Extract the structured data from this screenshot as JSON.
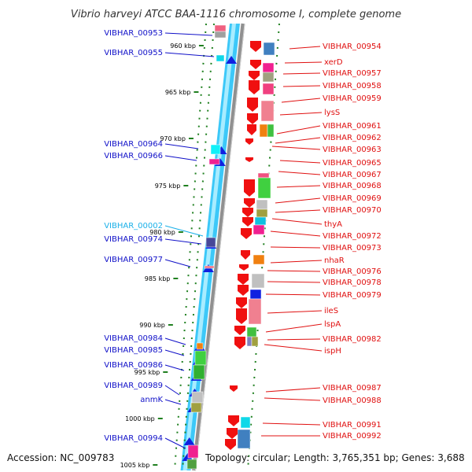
{
  "title": "Vibrio harveyi ATCC BAA-1116 chromosome I, complete genome",
  "footer": {
    "accession": "Accession: NC_009783",
    "topology": "Topology: circular; Length: 3,765,351 bp; Genes: 3,688"
  },
  "colors": {
    "left_gene_label": "#1010c8",
    "left_gene_label_alt": "#1ab0e8",
    "right_gene_label": "#e01010",
    "backbone_blue": "#3cc8f8",
    "backbone_gray": "#909090",
    "tick_green": "#208020"
  },
  "kbp_ticks": [
    "960 kbp",
    "965 kbp",
    "970 kbp",
    "975 kbp",
    "980 kbp",
    "985 kbp",
    "990 kbp",
    "995 kbp",
    "1000 kbp",
    "1005 kbp"
  ],
  "left_genes": [
    {
      "label": "VIBHAR_00953",
      "color": "#1010c8"
    },
    {
      "label": "VIBHAR_00955",
      "color": "#1010c8"
    },
    {
      "label": "VIBHAR_00964",
      "color": "#1010c8"
    },
    {
      "label": "VIBHAR_00966",
      "color": "#1010c8"
    },
    {
      "label": "VIBHAR_00002",
      "color": "#1ab0e8"
    },
    {
      "label": "VIBHAR_00974",
      "color": "#1010c8"
    },
    {
      "label": "VIBHAR_00977",
      "color": "#1010c8"
    },
    {
      "label": "VIBHAR_00984",
      "color": "#1010c8"
    },
    {
      "label": "VIBHAR_00985",
      "color": "#1010c8"
    },
    {
      "label": "VIBHAR_00986",
      "color": "#1010c8"
    },
    {
      "label": "VIBHAR_00989",
      "color": "#1010c8"
    },
    {
      "label": "anmK",
      "color": "#1010c8"
    },
    {
      "label": "VIBHAR_00994",
      "color": "#1010c8"
    }
  ],
  "right_genes": [
    "VIBHAR_00954",
    "xerD",
    "VIBHAR_00957",
    "VIBHAR_00958",
    "VIBHAR_00959",
    "lysS",
    "VIBHAR_00961",
    "VIBHAR_00962",
    "VIBHAR_00963",
    "VIBHAR_00965",
    "VIBHAR_00967",
    "VIBHAR_00968",
    "VIBHAR_00969",
    "VIBHAR_00970",
    "thyA",
    "VIBHAR_00972",
    "VIBHAR_00973",
    "nhaR",
    "VIBHAR_00976",
    "VIBHAR_00978",
    "VIBHAR_00979",
    "ileS",
    "lspA",
    "VIBHAR_00982",
    "ispH",
    "VIBHAR_00987",
    "VIBHAR_00988",
    "VIBHAR_00991",
    "VIBHAR_00992"
  ]
}
